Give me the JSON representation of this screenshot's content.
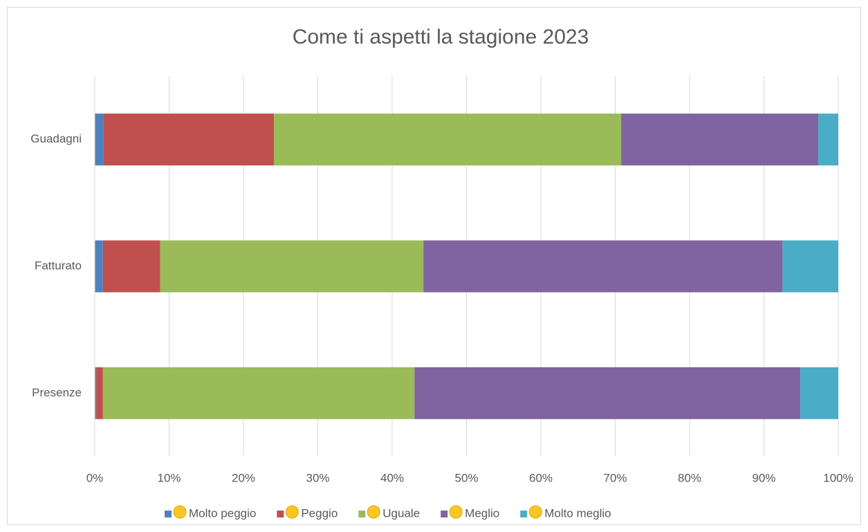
{
  "chart_data": {
    "type": "stacked_bar_horizontal",
    "title": "Come ti aspetti la stagione 2023",
    "categories": [
      "Guadagni",
      "Fatturato",
      "Presenze"
    ],
    "series": [
      {
        "name": "Molto peggio",
        "color": "#4f81bd",
        "values": [
          1.2,
          1.1,
          0.2
        ]
      },
      {
        "name": "Peggio",
        "color": "#c0504d",
        "values": [
          22.9,
          7.7,
          0.9
        ]
      },
      {
        "name": "Uguale",
        "color": "#9bbb59",
        "values": [
          46.7,
          35.4,
          41.9
        ]
      },
      {
        "name": "Meglio",
        "color": "#8064a2",
        "values": [
          26.5,
          48.3,
          51.9
        ]
      },
      {
        "name": "Molto meglio",
        "color": "#4bacc6",
        "values": [
          2.7,
          7.5,
          5.1
        ]
      }
    ],
    "xlim": [
      0,
      100
    ],
    "xticks": [
      {
        "value": 0,
        "label": "0%"
      },
      {
        "value": 10,
        "label": "10%"
      },
      {
        "value": 20,
        "label": "20%"
      },
      {
        "value": 30,
        "label": "30%"
      },
      {
        "value": 40,
        "label": "40%"
      },
      {
        "value": 50,
        "label": "50%"
      },
      {
        "value": 60,
        "label": "60%"
      },
      {
        "value": 70,
        "label": "70%"
      },
      {
        "value": 80,
        "label": "80%"
      },
      {
        "value": 90,
        "label": "90%"
      },
      {
        "value": 100,
        "label": "100%"
      }
    ],
    "grid": true,
    "legend": "bottom"
  }
}
